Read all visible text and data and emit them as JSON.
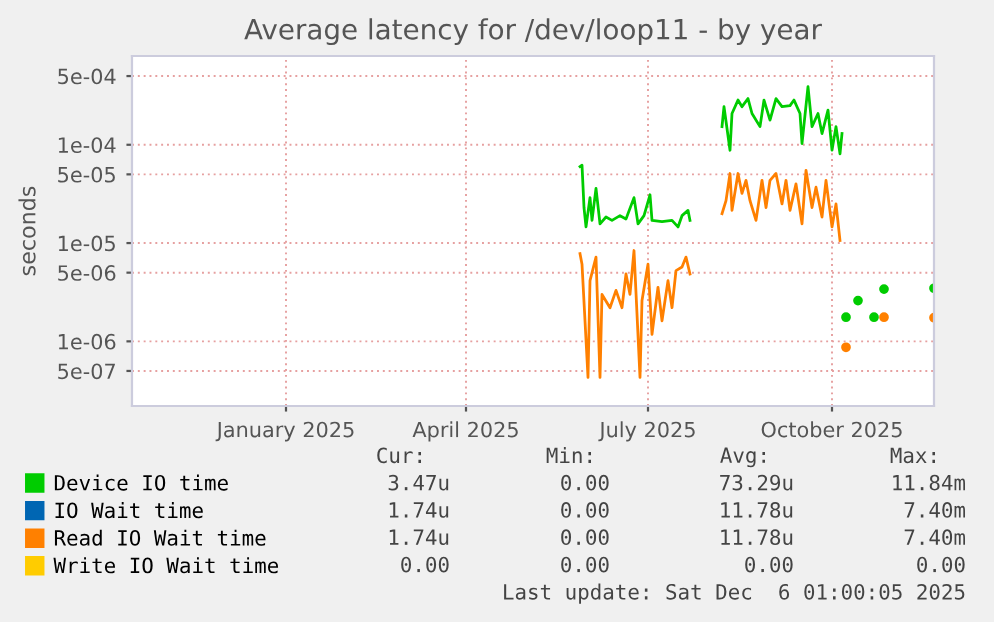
{
  "chart_data": {
    "type": "line",
    "title": "Average latency for /dev/loop11 - by year",
    "ylabel": "seconds",
    "log": "y",
    "grid": true,
    "legend": "bottom",
    "marker": "none",
    "line_style": "solid",
    "xlim": [
      "2024-10-31",
      "2025-12-06"
    ],
    "xticks": [
      {
        "value": "2025-01-16",
        "label": "January 2025"
      },
      {
        "value": "2025-04-16",
        "label": "April 2025"
      },
      {
        "value": "2025-07-16",
        "label": "July 2025"
      },
      {
        "value": "2025-10-16",
        "label": "October 2025"
      }
    ],
    "ylim": [
      2.2e-07,
      0.0008
    ],
    "yticks": [
      {
        "value": 5e-07,
        "label": "5e-07"
      },
      {
        "value": 1e-06,
        "label": "1e-06"
      },
      {
        "value": 5e-06,
        "label": "5e-06"
      },
      {
        "value": 1e-05,
        "label": "1e-05"
      },
      {
        "value": 5e-05,
        "label": "5e-05"
      },
      {
        "value": 0.0001,
        "label": "1e-04"
      },
      {
        "value": 0.0005,
        "label": "5e-04"
      }
    ],
    "series": [
      {
        "name": "Device IO time",
        "color": "#00cc00",
        "x": [
          "2025-06-12",
          "2025-06-13",
          "2025-06-14",
          "2025-06-15",
          "2025-06-17",
          "2025-06-18",
          "2025-06-20",
          "2025-06-22",
          "2025-06-25",
          "2025-06-28",
          "2025-07-02",
          "2025-07-05",
          "2025-07-09",
          "2025-07-11",
          "2025-07-14",
          "2025-07-17",
          "2025-07-18",
          "2025-07-23",
          "2025-07-28",
          "2025-07-31",
          "2025-08-02",
          "2025-08-05",
          "2025-08-06",
          "2025-08-07",
          "2025-08-21",
          "2025-08-22",
          "2025-08-23",
          "2025-08-26",
          "2025-08-27",
          "2025-08-30",
          "2025-09-01",
          "2025-09-04",
          "2025-09-06",
          "2025-09-10",
          "2025-09-12",
          "2025-09-15",
          "2025-09-18",
          "2025-09-21",
          "2025-09-25",
          "2025-09-27",
          "2025-09-30",
          "2025-10-01",
          "2025-10-04",
          "2025-10-06",
          "2025-10-09",
          "2025-10-11",
          "2025-10-14",
          "2025-10-16",
          "2025-10-18",
          "2025-10-20",
          "2025-10-21",
          "2025-10-22",
          "2025-10-23",
          "2025-10-24",
          "2025-10-28",
          "2025-10-29",
          "2025-10-30",
          "2025-11-05",
          "2025-11-06",
          "2025-11-07",
          "2025-11-10",
          "2025-11-11",
          "2025-11-12",
          "2025-12-05",
          "2025-12-06"
        ],
        "values": [
          6e-05,
          6.2e-05,
          2.3e-05,
          1.46e-05,
          2.9e-05,
          1.7e-05,
          3.6e-05,
          1.57e-05,
          1.84e-05,
          1.7e-05,
          1.9e-05,
          1.76e-05,
          2.9e-05,
          1.57e-05,
          1.9e-05,
          3.1e-05,
          1.7e-05,
          1.65e-05,
          1.7e-05,
          1.46e-05,
          1.9e-05,
          2.15e-05,
          1.7e-05,
          null,
          null,
          0.000153,
          0.000244,
          8.8e-05,
          0.000208,
          0.000285,
          0.000244,
          0.000295,
          0.000208,
          0.000153,
          0.000285,
          0.000178,
          0.000295,
          0.000244,
          0.00025,
          0.000285,
          0.000208,
          0.000103,
          0.00039,
          0.000153,
          0.000208,
          0.00013,
          0.000225,
          8.8e-05,
          0.000153,
          8.1e-05,
          0.00013,
          null,
          1.76e-06,
          null,
          null,
          2.6e-06,
          null,
          null,
          1.76e-06,
          null,
          null,
          3.4e-06,
          null,
          null,
          3.47e-06
        ]
      },
      {
        "name": "IO Wait time",
        "color": "#0066b3"
      },
      {
        "name": "Read IO Wait time",
        "color": "#ff8000",
        "x": [
          "2025-06-12",
          "2025-06-13",
          "2025-06-16",
          "2025-06-17",
          "2025-06-20",
          "2025-06-22",
          "2025-06-23",
          "2025-06-27",
          "2025-06-30",
          "2025-07-03",
          "2025-07-05",
          "2025-07-07",
          "2025-07-09",
          "2025-07-12",
          "2025-07-13",
          "2025-07-16",
          "2025-07-18",
          "2025-07-21",
          "2025-07-23",
          "2025-07-26",
          "2025-07-28",
          "2025-07-30",
          "2025-08-02",
          "2025-08-04",
          "2025-08-06",
          "2025-08-07",
          "2025-08-21",
          "2025-08-22",
          "2025-08-24",
          "2025-08-26",
          "2025-08-27",
          "2025-08-30",
          "2025-09-01",
          "2025-09-03",
          "2025-09-05",
          "2025-09-08",
          "2025-09-11",
          "2025-09-13",
          "2025-09-15",
          "2025-09-18",
          "2025-09-21",
          "2025-09-23",
          "2025-09-25",
          "2025-09-28",
          "2025-10-01",
          "2025-10-03",
          "2025-10-06",
          "2025-10-08",
          "2025-10-11",
          "2025-10-13",
          "2025-10-16",
          "2025-10-18",
          "2025-10-20",
          "2025-10-22",
          "2025-10-23",
          "2025-10-24",
          "2025-11-10",
          "2025-11-11",
          "2025-11-12",
          "2025-12-05",
          "2025-12-06"
        ],
        "values": [
          7.8e-06,
          6.1e-06,
          4.3e-07,
          4.15e-06,
          7.2e-06,
          4.3e-07,
          3e-06,
          2.2e-06,
          3.3e-06,
          2.2e-06,
          4.85e-06,
          3e-06,
          8.4e-06,
          4.3e-07,
          2.6e-06,
          6.1e-06,
          1.18e-06,
          3.55e-06,
          1.62e-06,
          4.15e-06,
          2.2e-06,
          5.25e-06,
          5.7e-06,
          7.2e-06,
          4.85e-06,
          null,
          null,
          1.99e-05,
          2.7e-05,
          5.1e-05,
          2.15e-05,
          5.1e-05,
          3.2e-05,
          4.35e-05,
          2.7e-05,
          1.7e-05,
          4.35e-05,
          2.3e-05,
          4.35e-05,
          5.1e-05,
          2.5e-05,
          4.35e-05,
          2.15e-05,
          4e-05,
          1.57e-05,
          5.5e-05,
          2.3e-05,
          3.7e-05,
          1.84e-05,
          4.35e-05,
          1.46e-05,
          2.5e-05,
          1.06e-05,
          null,
          8.7e-07,
          null,
          null,
          1.76e-06,
          null,
          null,
          1.74e-06
        ]
      },
      {
        "name": "Write IO Wait time",
        "color": "#ffcc00"
      }
    ],
    "annotations": [
      "Cur:",
      "Min:",
      "Avg:",
      "Max:",
      "3.47u",
      "0.00",
      "73.29u",
      "11.84m",
      "1.74u",
      "0.00",
      "11.78u",
      "7.40m",
      "1.74u",
      "0.00",
      "11.78u",
      "7.40m",
      "0.00",
      "0.00",
      "0.00",
      "0.00",
      "Last update: Sat Dec  6 01:00:05 2025"
    ]
  }
}
